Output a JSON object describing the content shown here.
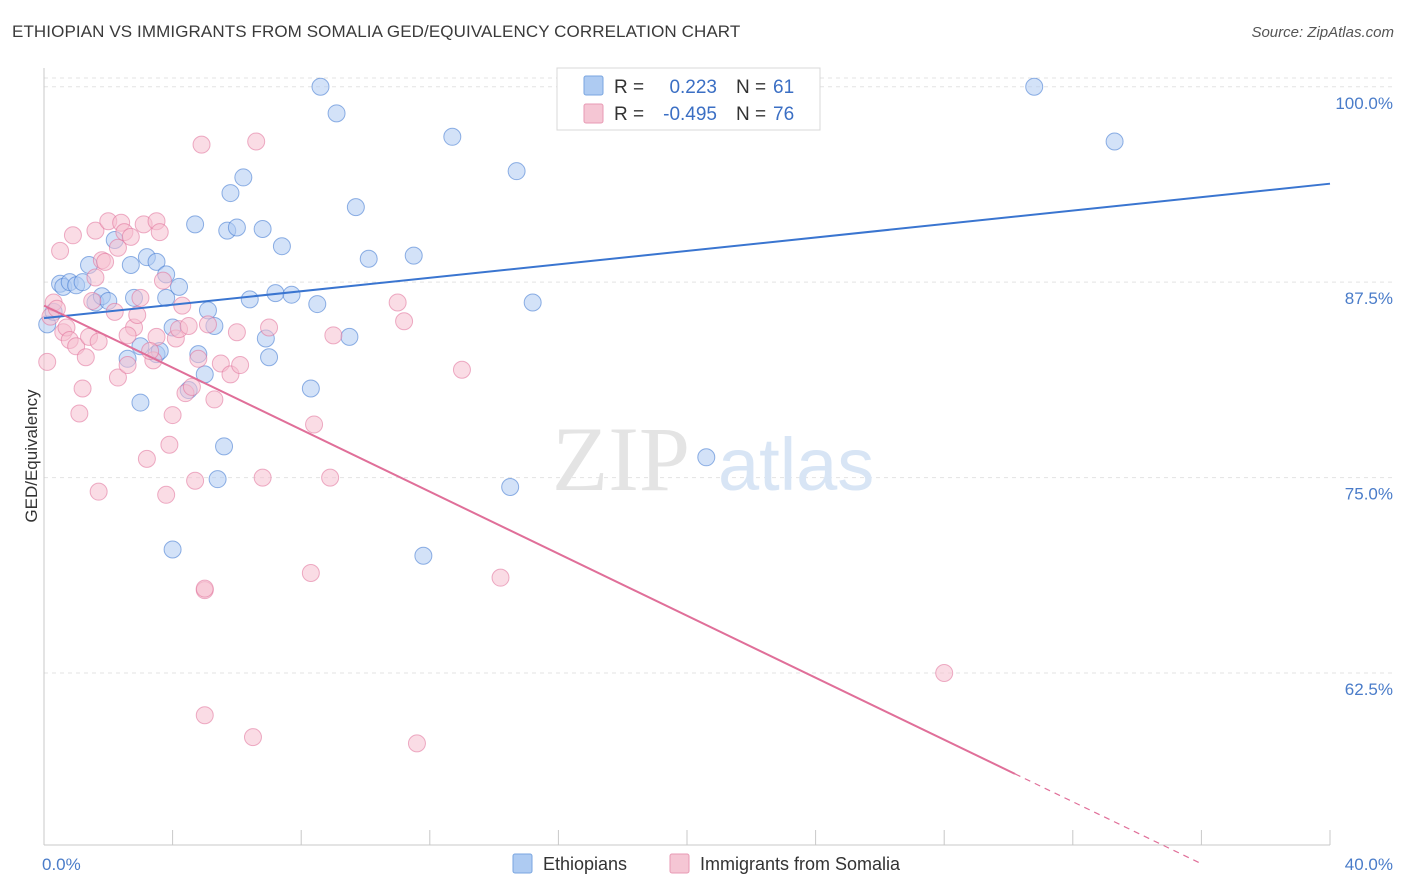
{
  "header": {
    "title": "ETHIOPIAN VS IMMIGRANTS FROM SOMALIA GED/EQUIVALENCY CORRELATION CHART",
    "source": "Source: ZipAtlas.com"
  },
  "watermark": {
    "zip": "ZIP",
    "atlas": "atlas"
  },
  "legend_top": {
    "rows": [
      {
        "r_label": "R =",
        "r_value": "0.223",
        "n_label": "N =",
        "n_value": "61",
        "color": "#9ec3f0"
      },
      {
        "r_label": "R =",
        "r_value": "-0.495",
        "n_label": "N =",
        "n_value": "76",
        "color": "#f4b6c8"
      }
    ]
  },
  "legend_bottom": {
    "items": [
      {
        "label": "Ethiopians",
        "color": "#9ec3f0"
      },
      {
        "label": "Immigrants from Somalia",
        "color": "#f4b6c8"
      }
    ]
  },
  "chart_data": {
    "type": "scatter",
    "title": "ETHIOPIAN VS IMMIGRANTS FROM SOMALIA GED/EQUIVALENCY CORRELATION CHART",
    "xlabel": "",
    "ylabel": "GED/Equivalency",
    "xlim": [
      0,
      40
    ],
    "ylim": [
      51.5,
      101.2
    ],
    "x_tick_labels": [
      "0.0%",
      "40.0%"
    ],
    "y_ticks": [
      62.5,
      75.0,
      87.5,
      100.0
    ],
    "y_tick_labels": [
      "62.5%",
      "75.0%",
      "87.5%",
      "100.0%"
    ],
    "grid": true,
    "legend_position": "top-center",
    "series": [
      {
        "name": "Ethiopians",
        "color": "#3a75d0",
        "fill": "#aecbf2",
        "trend": {
          "x": [
            0,
            40
          ],
          "y": [
            85.2,
            93.8
          ],
          "dashed_from": null
        },
        "points": [
          [
            0.1,
            84.8
          ],
          [
            0.3,
            85.6
          ],
          [
            0.5,
            87.4
          ],
          [
            0.6,
            87.2
          ],
          [
            0.8,
            87.5
          ],
          [
            1.0,
            87.3
          ],
          [
            1.2,
            87.5
          ],
          [
            1.4,
            88.6
          ],
          [
            1.6,
            86.2
          ],
          [
            1.8,
            86.6
          ],
          [
            2.0,
            86.3
          ],
          [
            2.2,
            90.2
          ],
          [
            2.6,
            82.6
          ],
          [
            2.7,
            88.6
          ],
          [
            2.8,
            86.5
          ],
          [
            3.0,
            79.8
          ],
          [
            3.0,
            83.4
          ],
          [
            3.2,
            89.1
          ],
          [
            3.5,
            88.8
          ],
          [
            3.5,
            82.9
          ],
          [
            3.6,
            83.1
          ],
          [
            3.8,
            86.5
          ],
          [
            3.8,
            88.0
          ],
          [
            4.0,
            84.6
          ],
          [
            4.0,
            70.4
          ],
          [
            4.2,
            87.2
          ],
          [
            4.5,
            80.6
          ],
          [
            4.7,
            91.2
          ],
          [
            4.8,
            82.9
          ],
          [
            5.0,
            81.6
          ],
          [
            5.1,
            85.7
          ],
          [
            5.3,
            84.7
          ],
          [
            5.4,
            74.9
          ],
          [
            5.6,
            77.0
          ],
          [
            5.7,
            90.8
          ],
          [
            5.8,
            93.2
          ],
          [
            6.0,
            91.0
          ],
          [
            6.2,
            94.2
          ],
          [
            6.4,
            86.4
          ],
          [
            6.8,
            90.9
          ],
          [
            6.9,
            83.9
          ],
          [
            7.0,
            82.7
          ],
          [
            7.2,
            86.8
          ],
          [
            7.4,
            89.8
          ],
          [
            7.7,
            86.7
          ],
          [
            8.3,
            80.7
          ],
          [
            8.5,
            86.1
          ],
          [
            8.6,
            100.0
          ],
          [
            9.1,
            98.3
          ],
          [
            9.5,
            84.0
          ],
          [
            9.7,
            92.3
          ],
          [
            10.1,
            89.0
          ],
          [
            11.5,
            89.2
          ],
          [
            11.8,
            70.0
          ],
          [
            12.7,
            96.8
          ],
          [
            14.5,
            74.4
          ],
          [
            14.7,
            94.6
          ],
          [
            15.2,
            86.2
          ],
          [
            20.6,
            76.3
          ],
          [
            30.8,
            100.0
          ],
          [
            33.3,
            96.5
          ]
        ]
      },
      {
        "name": "Immigrants from Somalia",
        "color": "#e06f99",
        "fill": "#f5bfd0",
        "trend": {
          "x": [
            0,
            36
          ],
          "y": [
            86.0,
            50.3
          ],
          "dashed_from": 30.2
        },
        "points": [
          [
            0.1,
            82.4
          ],
          [
            0.2,
            85.3
          ],
          [
            0.3,
            86.2
          ],
          [
            0.4,
            85.8
          ],
          [
            0.5,
            89.5
          ],
          [
            0.6,
            84.3
          ],
          [
            0.7,
            84.6
          ],
          [
            0.8,
            83.8
          ],
          [
            0.9,
            90.5
          ],
          [
            1.0,
            83.4
          ],
          [
            1.1,
            79.1
          ],
          [
            1.2,
            80.7
          ],
          [
            1.3,
            82.7
          ],
          [
            1.4,
            84.0
          ],
          [
            1.5,
            86.3
          ],
          [
            1.6,
            87.8
          ],
          [
            1.7,
            83.7
          ],
          [
            1.8,
            88.9
          ],
          [
            1.6,
            90.8
          ],
          [
            1.7,
            74.1
          ],
          [
            2.0,
            91.4
          ],
          [
            2.2,
            85.6
          ],
          [
            2.3,
            89.7
          ],
          [
            2.3,
            81.4
          ],
          [
            2.4,
            91.3
          ],
          [
            2.5,
            90.7
          ],
          [
            2.6,
            82.2
          ],
          [
            2.7,
            90.4
          ],
          [
            2.8,
            84.6
          ],
          [
            2.9,
            85.4
          ],
          [
            3.0,
            86.5
          ],
          [
            3.1,
            91.2
          ],
          [
            3.2,
            76.2
          ],
          [
            3.4,
            82.5
          ],
          [
            3.5,
            84.0
          ],
          [
            3.5,
            91.4
          ],
          [
            3.6,
            90.7
          ],
          [
            3.7,
            87.6
          ],
          [
            3.8,
            73.9
          ],
          [
            3.9,
            77.1
          ],
          [
            4.0,
            79.0
          ],
          [
            4.1,
            83.9
          ],
          [
            4.2,
            84.5
          ],
          [
            4.3,
            86.0
          ],
          [
            4.4,
            80.4
          ],
          [
            4.5,
            84.7
          ],
          [
            4.6,
            80.8
          ],
          [
            4.7,
            74.8
          ],
          [
            4.8,
            82.6
          ],
          [
            4.9,
            96.3
          ],
          [
            5.0,
            59.8
          ],
          [
            5.0,
            67.8
          ],
          [
            5.0,
            67.9
          ],
          [
            5.1,
            84.8
          ],
          [
            5.3,
            80.0
          ],
          [
            5.5,
            82.3
          ],
          [
            5.8,
            81.6
          ],
          [
            6.0,
            84.3
          ],
          [
            6.5,
            58.4
          ],
          [
            6.6,
            96.5
          ],
          [
            6.8,
            75.0
          ],
          [
            7.0,
            84.6
          ],
          [
            8.3,
            68.9
          ],
          [
            8.4,
            78.4
          ],
          [
            8.9,
            75.0
          ],
          [
            9.0,
            84.1
          ],
          [
            11.0,
            86.2
          ],
          [
            11.2,
            85.0
          ],
          [
            11.6,
            58.0
          ],
          [
            14.2,
            68.6
          ],
          [
            13.0,
            81.9
          ],
          [
            28.0,
            62.5
          ],
          [
            2.6,
            84.1
          ],
          [
            3.3,
            83.1
          ],
          [
            6.1,
            82.2
          ],
          [
            1.9,
            88.8
          ]
        ]
      }
    ]
  }
}
